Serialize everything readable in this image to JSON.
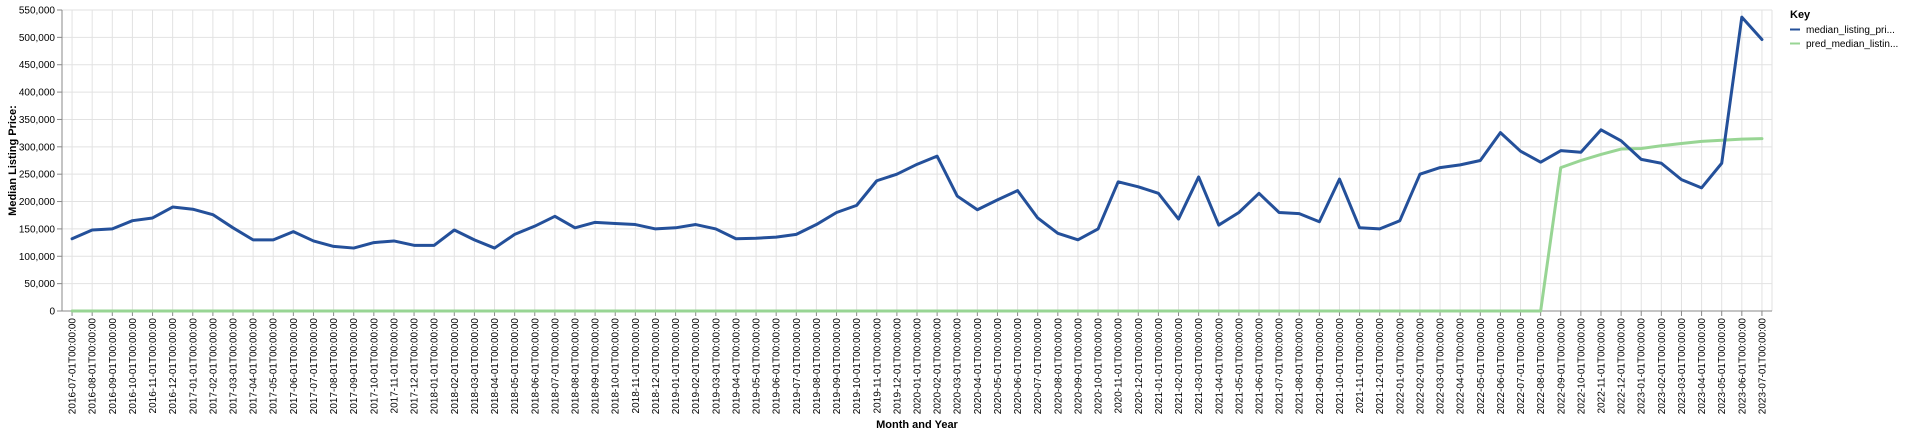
{
  "chart_data": {
    "type": "line",
    "title": "",
    "xlabel": "Month and Year",
    "ylabel": "Median Listing Price:",
    "ylim": [
      0,
      550000
    ],
    "yticks": [
      0,
      50000,
      100000,
      150000,
      200000,
      250000,
      300000,
      350000,
      400000,
      450000,
      500000,
      550000
    ],
    "ytick_labels": [
      "0",
      "50,000",
      "100,000",
      "150,000",
      "200,000",
      "250,000",
      "300,000",
      "350,000",
      "400,000",
      "450,000",
      "500,000",
      "550,000"
    ],
    "grid": true,
    "categories": [
      "2016-07-01T00:00:00",
      "2016-08-01T00:00:00",
      "2016-09-01T00:00:00",
      "2016-10-01T00:00:00",
      "2016-11-01T00:00:00",
      "2016-12-01T00:00:00",
      "2017-01-01T00:00:00",
      "2017-02-01T00:00:00",
      "2017-03-01T00:00:00",
      "2017-04-01T00:00:00",
      "2017-05-01T00:00:00",
      "2017-06-01T00:00:00",
      "2017-07-01T00:00:00",
      "2017-08-01T00:00:00",
      "2017-09-01T00:00:00",
      "2017-10-01T00:00:00",
      "2017-11-01T00:00:00",
      "2017-12-01T00:00:00",
      "2018-01-01T00:00:00",
      "2018-02-01T00:00:00",
      "2018-03-01T00:00:00",
      "2018-04-01T00:00:00",
      "2018-05-01T00:00:00",
      "2018-06-01T00:00:00",
      "2018-07-01T00:00:00",
      "2018-08-01T00:00:00",
      "2018-09-01T00:00:00",
      "2018-10-01T00:00:00",
      "2018-11-01T00:00:00",
      "2018-12-01T00:00:00",
      "2019-01-01T00:00:00",
      "2019-02-01T00:00:00",
      "2019-03-01T00:00:00",
      "2019-04-01T00:00:00",
      "2019-05-01T00:00:00",
      "2019-06-01T00:00:00",
      "2019-07-01T00:00:00",
      "2019-08-01T00:00:00",
      "2019-09-01T00:00:00",
      "2019-10-01T00:00:00",
      "2019-11-01T00:00:00",
      "2019-12-01T00:00:00",
      "2020-01-01T00:00:00",
      "2020-02-01T00:00:00",
      "2020-03-01T00:00:00",
      "2020-04-01T00:00:00",
      "2020-05-01T00:00:00",
      "2020-06-01T00:00:00",
      "2020-07-01T00:00:00",
      "2020-08-01T00:00:00",
      "2020-09-01T00:00:00",
      "2020-10-01T00:00:00",
      "2020-11-01T00:00:00",
      "2020-12-01T00:00:00",
      "2021-01-01T00:00:00",
      "2021-02-01T00:00:00",
      "2021-03-01T00:00:00",
      "2021-04-01T00:00:00",
      "2021-05-01T00:00:00",
      "2021-06-01T00:00:00",
      "2021-07-01T00:00:00",
      "2021-08-01T00:00:00",
      "2021-09-01T00:00:00",
      "2021-10-01T00:00:00",
      "2021-11-01T00:00:00",
      "2021-12-01T00:00:00",
      "2022-01-01T00:00:00",
      "2022-02-01T00:00:00",
      "2022-03-01T00:00:00",
      "2022-04-01T00:00:00",
      "2022-05-01T00:00:00",
      "2022-06-01T00:00:00",
      "2022-07-01T00:00:00",
      "2022-08-01T00:00:00",
      "2022-09-01T00:00:00",
      "2022-10-01T00:00:00",
      "2022-11-01T00:00:00",
      "2022-12-01T00:00:00",
      "2023-01-01T00:00:00",
      "2023-02-01T00:00:00",
      "2023-03-01T00:00:00",
      "2023-04-01T00:00:00",
      "2023-05-01T00:00:00",
      "2023-06-01T00:00:00",
      "2023-07-01T00:00:00"
    ],
    "series": [
      {
        "name": "median_listing_pri...",
        "color": "#24509a",
        "values": [
          132000,
          148000,
          150000,
          165000,
          170000,
          190000,
          186000,
          176000,
          152000,
          130000,
          130000,
          145000,
          128000,
          118000,
          115000,
          125000,
          128000,
          120000,
          120000,
          148000,
          130000,
          115000,
          140000,
          155000,
          173000,
          152000,
          162000,
          160000,
          158000,
          150000,
          152000,
          158000,
          150000,
          132000,
          133000,
          135000,
          140000,
          158000,
          180000,
          193000,
          238000,
          250000,
          268000,
          283000,
          210000,
          185000,
          203000,
          220000,
          170000,
          142000,
          130000,
          150000,
          236000,
          227000,
          215000,
          168000,
          245000,
          157000,
          180000,
          215000,
          180000,
          178000,
          163000,
          241000,
          152000,
          150000,
          165000,
          250000,
          262000,
          267000,
          275000,
          326000,
          292000,
          272000,
          293000,
          290000,
          331000,
          311000,
          277000,
          270000,
          240000,
          225000,
          270000,
          537000,
          496000
        ]
      },
      {
        "name": "pred_median_listin...",
        "color": "#98d594",
        "values": [
          0,
          0,
          0,
          0,
          0,
          0,
          0,
          0,
          0,
          0,
          0,
          0,
          0,
          0,
          0,
          0,
          0,
          0,
          0,
          0,
          0,
          0,
          0,
          0,
          0,
          0,
          0,
          0,
          0,
          0,
          0,
          0,
          0,
          0,
          0,
          0,
          0,
          0,
          0,
          0,
          0,
          0,
          0,
          0,
          0,
          0,
          0,
          0,
          0,
          0,
          0,
          0,
          0,
          0,
          0,
          0,
          0,
          0,
          0,
          0,
          0,
          0,
          0,
          0,
          0,
          0,
          0,
          0,
          0,
          0,
          0,
          0,
          0,
          0,
          262000,
          275000,
          286000,
          296000,
          297000,
          302000,
          306000,
          310000,
          312000,
          314000,
          315000
        ]
      }
    ],
    "legend": {
      "title": "Key",
      "position": "top-right",
      "entries": [
        "median_listing_pri...",
        "pred_median_listin..."
      ]
    }
  }
}
